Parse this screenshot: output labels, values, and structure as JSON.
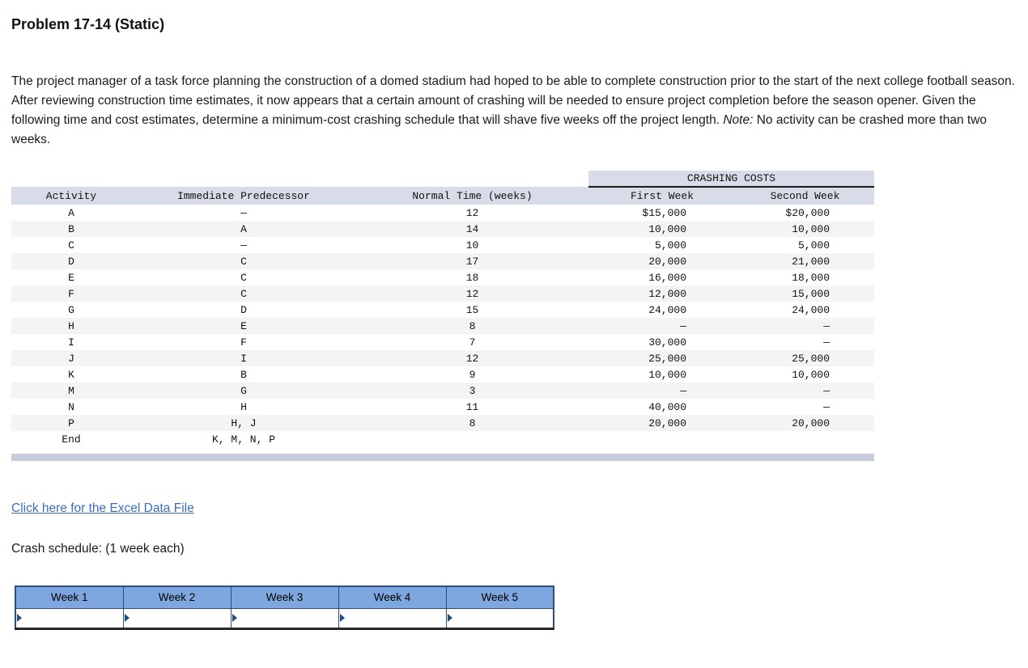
{
  "header": {
    "title": "Problem 17-14 (Static)"
  },
  "problem": {
    "text_before_note": "The project manager of a task force planning the construction of a domed stadium had hoped to be able to complete construction prior to the start of the next college football season. After reviewing construction time estimates, it now appears that a certain amount of crashing will be needed to ensure project completion before the season opener. Given the following time and cost estimates, determine a minimum-cost crashing schedule that will shave five weeks off the project length. ",
    "note_label": "Note:",
    "note_text": " No activity can be crashed more than two weeks."
  },
  "main_table": {
    "group_header": "CRASHING COSTS",
    "columns": [
      "Activity",
      "Immediate Predecessor",
      "Normal Time (weeks)",
      "First Week",
      "Second Week"
    ],
    "rows": [
      [
        "A",
        "—",
        "12",
        "$15,000",
        "$20,000"
      ],
      [
        "B",
        "A",
        "14",
        "10,000",
        "10,000"
      ],
      [
        "C",
        "—",
        "10",
        "5,000",
        "5,000"
      ],
      [
        "D",
        "C",
        "17",
        "20,000",
        "21,000"
      ],
      [
        "E",
        "C",
        "18",
        "16,000",
        "18,000"
      ],
      [
        "F",
        "C",
        "12",
        "12,000",
        "15,000"
      ],
      [
        "G",
        "D",
        "15",
        "24,000",
        "24,000"
      ],
      [
        "H",
        "E",
        "8",
        "—",
        "—"
      ],
      [
        "I",
        "F",
        "7",
        "30,000",
        "—"
      ],
      [
        "J",
        "I",
        "12",
        "25,000",
        "25,000"
      ],
      [
        "K",
        "B",
        "9",
        "10,000",
        "10,000"
      ],
      [
        "M",
        "G",
        "3",
        "—",
        "—"
      ],
      [
        "N",
        "H",
        "11",
        "40,000",
        "—"
      ],
      [
        "P",
        "H, J",
        "8",
        "20,000",
        "20,000"
      ],
      [
        "End",
        "K, M, N, P",
        "",
        "",
        ""
      ]
    ]
  },
  "links": {
    "excel": "Click here for the Excel Data File"
  },
  "crash_schedule": {
    "label": "Crash schedule: (1 week each)"
  },
  "week_table": {
    "headers": [
      "Week 1",
      "Week 2",
      "Week 3",
      "Week 4",
      "Week 5"
    ],
    "values": [
      "",
      "",
      "",
      "",
      ""
    ]
  },
  "colors": {
    "table_header_bg": "#d8dce8",
    "row_stripe": "#f4f4f6",
    "link_blue": "#3a6fc0",
    "week_header_bg": "#7ea6df",
    "scrollbar": "#c8cdde"
  }
}
